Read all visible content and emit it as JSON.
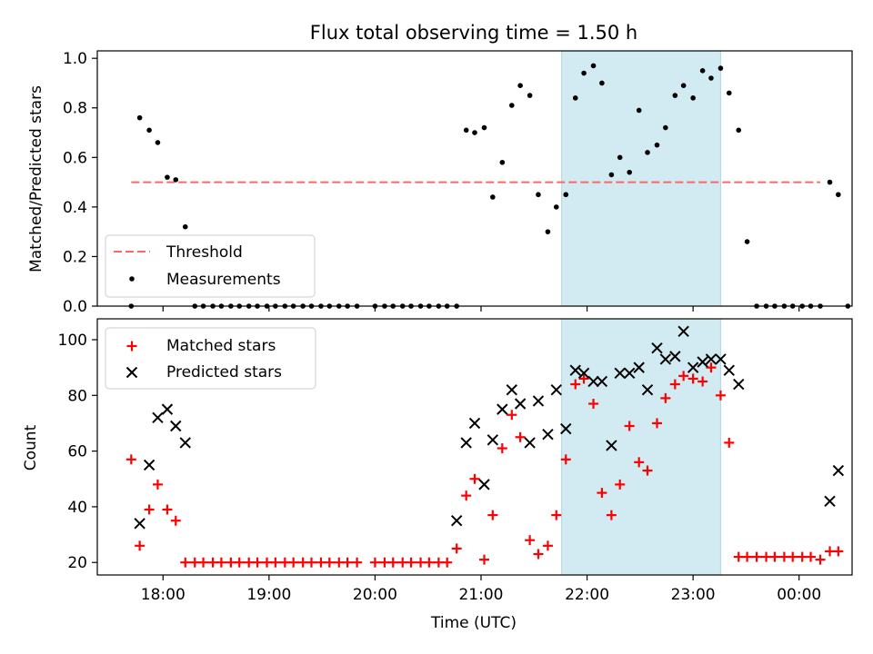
{
  "chart_data": {
    "title": "Flux total observing time = 1.50 h",
    "xlabel": "Time (UTC)",
    "x_unit": "hours since 18:00 UTC (values >= 6 are after midnight)",
    "x_range": [
      -0.62,
      6.5
    ],
    "x_ticks": [
      {
        "v": 0,
        "label": "18:00"
      },
      {
        "v": 1,
        "label": "19:00"
      },
      {
        "v": 2,
        "label": "20:00"
      },
      {
        "v": 3,
        "label": "21:00"
      },
      {
        "v": 4,
        "label": "22:00"
      },
      {
        "v": 5,
        "label": "23:00"
      },
      {
        "v": 6,
        "label": "00:00"
      }
    ],
    "highlight_span": {
      "x": [
        3.76,
        5.26
      ],
      "color": "#add8e6"
    },
    "panels": [
      {
        "type": "scatter",
        "ylabel": "Matched/Predicted stars",
        "ylim": [
          0,
          1.03
        ],
        "y_ticks": [
          "0.0",
          "0.2",
          "0.4",
          "0.6",
          "0.8",
          "1.0"
        ],
        "y_tick_values": [
          0,
          0.2,
          0.4,
          0.6,
          0.8,
          1.0
        ],
        "legend_position": "lower-left",
        "threshold": {
          "name": "Threshold",
          "y": 0.5,
          "x": [
            -0.3,
            6.2
          ],
          "color": "#ff6666"
        },
        "series": [
          {
            "name": "Measurements",
            "marker": "dot",
            "color": "#000000",
            "points": [
              [
                -0.3,
                0.0
              ],
              [
                -0.22,
                0.76
              ],
              [
                -0.13,
                0.71
              ],
              [
                -0.05,
                0.66
              ],
              [
                0.04,
                0.52
              ],
              [
                0.12,
                0.51
              ],
              [
                0.21,
                0.32
              ],
              [
                0.3,
                0.0
              ],
              [
                0.38,
                0.0
              ],
              [
                0.47,
                0.0
              ],
              [
                0.55,
                0.0
              ],
              [
                0.64,
                0.0
              ],
              [
                0.72,
                0.0
              ],
              [
                0.81,
                0.0
              ],
              [
                0.89,
                0.0
              ],
              [
                0.98,
                0.0
              ],
              [
                1.06,
                0.0
              ],
              [
                1.15,
                0.0
              ],
              [
                1.23,
                0.0
              ],
              [
                1.32,
                0.0
              ],
              [
                1.4,
                0.0
              ],
              [
                1.49,
                0.0
              ],
              [
                1.57,
                0.0
              ],
              [
                1.66,
                0.0
              ],
              [
                1.74,
                0.0
              ],
              [
                1.83,
                0.0
              ],
              [
                2.0,
                0.0
              ],
              [
                2.09,
                0.0
              ],
              [
                2.17,
                0.0
              ],
              [
                2.26,
                0.0
              ],
              [
                2.34,
                0.0
              ],
              [
                2.43,
                0.0
              ],
              [
                2.51,
                0.0
              ],
              [
                2.6,
                0.0
              ],
              [
                2.68,
                0.0
              ],
              [
                2.77,
                0.0
              ],
              [
                2.86,
                0.71
              ],
              [
                2.94,
                0.7
              ],
              [
                3.03,
                0.72
              ],
              [
                3.11,
                0.44
              ],
              [
                3.2,
                0.58
              ],
              [
                3.29,
                0.81
              ],
              [
                3.37,
                0.89
              ],
              [
                3.46,
                0.85
              ],
              [
                3.54,
                0.45
              ],
              [
                3.63,
                0.3
              ],
              [
                3.71,
                0.4
              ],
              [
                3.8,
                0.45
              ],
              [
                3.89,
                0.84
              ],
              [
                3.97,
                0.94
              ],
              [
                4.06,
                0.97
              ],
              [
                4.14,
                0.9
              ],
              [
                4.23,
                0.53
              ],
              [
                4.31,
                0.6
              ],
              [
                4.4,
                0.54
              ],
              [
                4.49,
                0.79
              ],
              [
                4.57,
                0.62
              ],
              [
                4.66,
                0.65
              ],
              [
                4.74,
                0.72
              ],
              [
                4.83,
                0.85
              ],
              [
                4.91,
                0.89
              ],
              [
                5.0,
                0.84
              ],
              [
                5.09,
                0.95
              ],
              [
                5.17,
                0.92
              ],
              [
                5.26,
                0.96
              ],
              [
                5.34,
                0.86
              ],
              [
                5.43,
                0.71
              ],
              [
                5.51,
                0.26
              ],
              [
                5.6,
                0.0
              ],
              [
                5.69,
                0.0
              ],
              [
                5.77,
                0.0
              ],
              [
                5.86,
                0.0
              ],
              [
                5.94,
                0.0
              ],
              [
                6.03,
                0.0
              ],
              [
                6.11,
                0.0
              ],
              [
                6.2,
                0.0
              ],
              [
                6.29,
                0.5
              ],
              [
                6.37,
                0.45
              ],
              [
                6.46,
                0.0
              ]
            ]
          }
        ]
      },
      {
        "type": "scatter",
        "ylabel": "Count",
        "ylim": [
          15.5,
          107.5
        ],
        "y_ticks": [
          "20",
          "40",
          "60",
          "80",
          "100"
        ],
        "y_tick_values": [
          20,
          40,
          60,
          80,
          100
        ],
        "legend_position": "upper-left",
        "series": [
          {
            "name": "Matched stars",
            "marker": "plus",
            "color": "#ff0000",
            "points": [
              [
                -0.3,
                57
              ],
              [
                -0.22,
                26
              ],
              [
                -0.13,
                39
              ],
              [
                -0.05,
                48
              ],
              [
                0.04,
                39
              ],
              [
                0.12,
                35
              ],
              [
                0.21,
                20
              ],
              [
                0.3,
                20
              ],
              [
                0.38,
                20
              ],
              [
                0.47,
                20
              ],
              [
                0.55,
                20
              ],
              [
                0.64,
                20
              ],
              [
                0.72,
                20
              ],
              [
                0.81,
                20
              ],
              [
                0.89,
                20
              ],
              [
                0.98,
                20
              ],
              [
                1.06,
                20
              ],
              [
                1.15,
                20
              ],
              [
                1.23,
                20
              ],
              [
                1.32,
                20
              ],
              [
                1.4,
                20
              ],
              [
                1.49,
                20
              ],
              [
                1.57,
                20
              ],
              [
                1.66,
                20
              ],
              [
                1.74,
                20
              ],
              [
                1.83,
                20
              ],
              [
                2.0,
                20
              ],
              [
                2.09,
                20
              ],
              [
                2.17,
                20
              ],
              [
                2.26,
                20
              ],
              [
                2.34,
                20
              ],
              [
                2.43,
                20
              ],
              [
                2.51,
                20
              ],
              [
                2.6,
                20
              ],
              [
                2.68,
                20
              ],
              [
                2.77,
                25
              ],
              [
                2.86,
                44
              ],
              [
                2.94,
                50
              ],
              [
                3.03,
                21
              ],
              [
                3.11,
                37
              ],
              [
                3.2,
                61
              ],
              [
                3.29,
                73
              ],
              [
                3.37,
                65
              ],
              [
                3.46,
                28
              ],
              [
                3.54,
                23
              ],
              [
                3.63,
                26
              ],
              [
                3.71,
                37
              ],
              [
                3.8,
                57
              ],
              [
                3.89,
                84
              ],
              [
                3.97,
                86
              ],
              [
                4.06,
                77
              ],
              [
                4.14,
                45
              ],
              [
                4.23,
                37
              ],
              [
                4.31,
                48
              ],
              [
                4.4,
                69
              ],
              [
                4.49,
                56
              ],
              [
                4.57,
                53
              ],
              [
                4.66,
                70
              ],
              [
                4.74,
                79
              ],
              [
                4.83,
                84
              ],
              [
                4.91,
                87
              ],
              [
                5.0,
                86
              ],
              [
                5.09,
                85
              ],
              [
                5.17,
                90
              ],
              [
                5.26,
                80
              ],
              [
                5.34,
                63
              ],
              [
                5.43,
                22
              ],
              [
                5.51,
                22
              ],
              [
                5.6,
                22
              ],
              [
                5.69,
                22
              ],
              [
                5.77,
                22
              ],
              [
                5.86,
                22
              ],
              [
                5.94,
                22
              ],
              [
                6.03,
                22
              ],
              [
                6.11,
                22
              ],
              [
                6.2,
                21
              ],
              [
                6.29,
                24
              ],
              [
                6.37,
                24
              ]
            ]
          },
          {
            "name": "Predicted stars",
            "marker": "x",
            "color": "#000000",
            "points": [
              [
                -0.22,
                34
              ],
              [
                -0.13,
                55
              ],
              [
                -0.05,
                72
              ],
              [
                0.04,
                75
              ],
              [
                0.12,
                69
              ],
              [
                0.21,
                63
              ],
              [
                2.77,
                35
              ],
              [
                2.86,
                63
              ],
              [
                2.94,
                70
              ],
              [
                3.03,
                48
              ],
              [
                3.11,
                64
              ],
              [
                3.2,
                75
              ],
              [
                3.29,
                82
              ],
              [
                3.37,
                77
              ],
              [
                3.46,
                63
              ],
              [
                3.54,
                78
              ],
              [
                3.63,
                66
              ],
              [
                3.71,
                82
              ],
              [
                3.8,
                68
              ],
              [
                3.89,
                89
              ],
              [
                3.97,
                88
              ],
              [
                4.06,
                85
              ],
              [
                4.14,
                85
              ],
              [
                4.23,
                62
              ],
              [
                4.31,
                88
              ],
              [
                4.4,
                88
              ],
              [
                4.49,
                90
              ],
              [
                4.57,
                82
              ],
              [
                4.66,
                97
              ],
              [
                4.74,
                93
              ],
              [
                4.83,
                94
              ],
              [
                4.91,
                103
              ],
              [
                5.0,
                90
              ],
              [
                5.09,
                92
              ],
              [
                5.17,
                93
              ],
              [
                5.26,
                93
              ],
              [
                5.34,
                89
              ],
              [
                5.43,
                84
              ],
              [
                6.29,
                42
              ],
              [
                6.37,
                53
              ]
            ]
          }
        ]
      }
    ]
  }
}
